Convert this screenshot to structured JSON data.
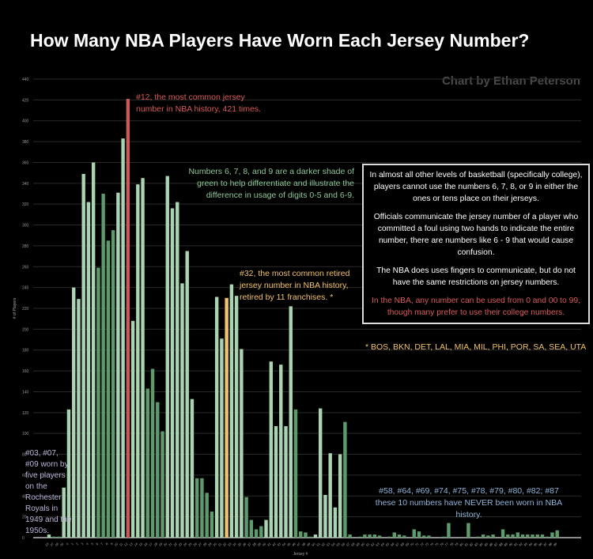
{
  "title": "How Many NBA Players Have Worn Each Jersey Number?",
  "credit": "Chart by Ethan Peterson",
  "annotations": {
    "n12": [
      "#12, the most common jersey",
      "number in NBA history, 421 times."
    ],
    "green": [
      "Numbers 6, 7, 8, and 9 are a darker shade of",
      "green to help differentiate and illustrate the",
      "difference in usage of digits 0-5 and 6-9."
    ],
    "n32": [
      "#32, the most common retired",
      "jersey number in NBA history,",
      "retired by 11 franchises. *"
    ],
    "left": "#03, #07, #09 worn by five players on the Rochester Royals in 1949 and the 1950s.",
    "right": [
      "#58, #64, #69, #74, #75, #78, #79, #80, #82; #87",
      "these 10 numbers have NEVER been worn in NBA history."
    ],
    "box": [
      "In almost all other levels of basketball (specifically college), players cannot use the numbers 6, 7, 8, or 9 in either the ones or tens place on their jerseys.",
      "Officials communicate the jersey number of a player who committed a foul using two hands to indicate the entire number, there are numbers like 6 - 9 that would cause confusion.",
      "The NBA does uses fingers to communicate, but do not have the same restrictions on jersey numbers.",
      "In the NBA, any number can be used from 0 and 00 to 99, though many prefer to use their college numbers."
    ],
    "footnote": "* BOS, BKN, DET, LAL, MIA, MIL, PHI, POR, SA, SEA, UTA"
  },
  "colors": {
    "light_green": "#a9d3b1",
    "dark_green": "#5e9a6b",
    "highlight_12": "#c95a5c",
    "highlight_32": "#f0c46e",
    "grid": "#2a2a2a"
  },
  "chart_data": {
    "type": "bar",
    "title": "How Many NBA Players Have Worn Each Jersey Number?",
    "xlabel": "Jersey #",
    "ylabel": "# of Players",
    "ylim": [
      0,
      440
    ],
    "yticks": [
      0,
      20,
      40,
      60,
      80,
      100,
      120,
      140,
      160,
      180,
      200,
      220,
      240,
      260,
      280,
      300,
      320,
      340,
      360,
      380,
      400,
      420,
      440
    ],
    "grid": true,
    "categories": [
      "03",
      "07",
      "09",
      "00",
      "0",
      "1",
      "2",
      "3",
      "4",
      "5",
      "6",
      "7",
      "8",
      "9",
      "10",
      "11",
      "12",
      "13",
      "14",
      "15",
      "16",
      "17",
      "18",
      "19",
      "20",
      "21",
      "22",
      "23",
      "24",
      "25",
      "26",
      "27",
      "28",
      "29",
      "30",
      "31",
      "32",
      "33",
      "34",
      "35",
      "36",
      "37",
      "38",
      "39",
      "40",
      "41",
      "42",
      "43",
      "44",
      "45",
      "46",
      "47",
      "48",
      "49",
      "50",
      "51",
      "52",
      "53",
      "54",
      "55",
      "56",
      "57",
      "58",
      "59",
      "60",
      "61",
      "62",
      "63",
      "64",
      "65",
      "66",
      "67",
      "68",
      "69",
      "70",
      "71",
      "72",
      "73",
      "74",
      "75",
      "76",
      "77",
      "78",
      "79",
      "80",
      "81",
      "82",
      "83",
      "84",
      "85",
      "86",
      "87",
      "88",
      "89",
      "90",
      "91",
      "92",
      "93",
      "94",
      "95",
      "96",
      "97",
      "98",
      "99"
    ],
    "values": [
      3,
      1,
      1,
      48,
      123,
      240,
      229,
      349,
      322,
      360,
      259,
      330,
      285,
      295,
      331,
      383,
      421,
      208,
      339,
      345,
      143,
      162,
      130,
      102,
      347,
      316,
      322,
      244,
      275,
      133,
      57,
      57,
      43,
      25,
      231,
      191,
      230,
      243,
      232,
      181,
      39,
      17,
      8,
      11,
      17,
      169,
      107,
      166,
      107,
      222,
      123,
      6,
      5,
      1,
      3,
      124,
      41,
      81,
      29,
      80,
      111,
      3,
      0,
      1,
      3,
      3,
      3,
      2,
      0,
      1,
      5,
      3,
      2,
      0,
      8,
      6,
      2,
      2,
      0,
      0,
      1,
      14,
      0,
      0,
      0,
      14,
      0,
      1,
      3,
      2,
      3,
      0,
      8,
      3,
      3,
      5,
      3,
      3,
      3,
      3,
      3,
      1,
      5,
      7
    ]
  }
}
